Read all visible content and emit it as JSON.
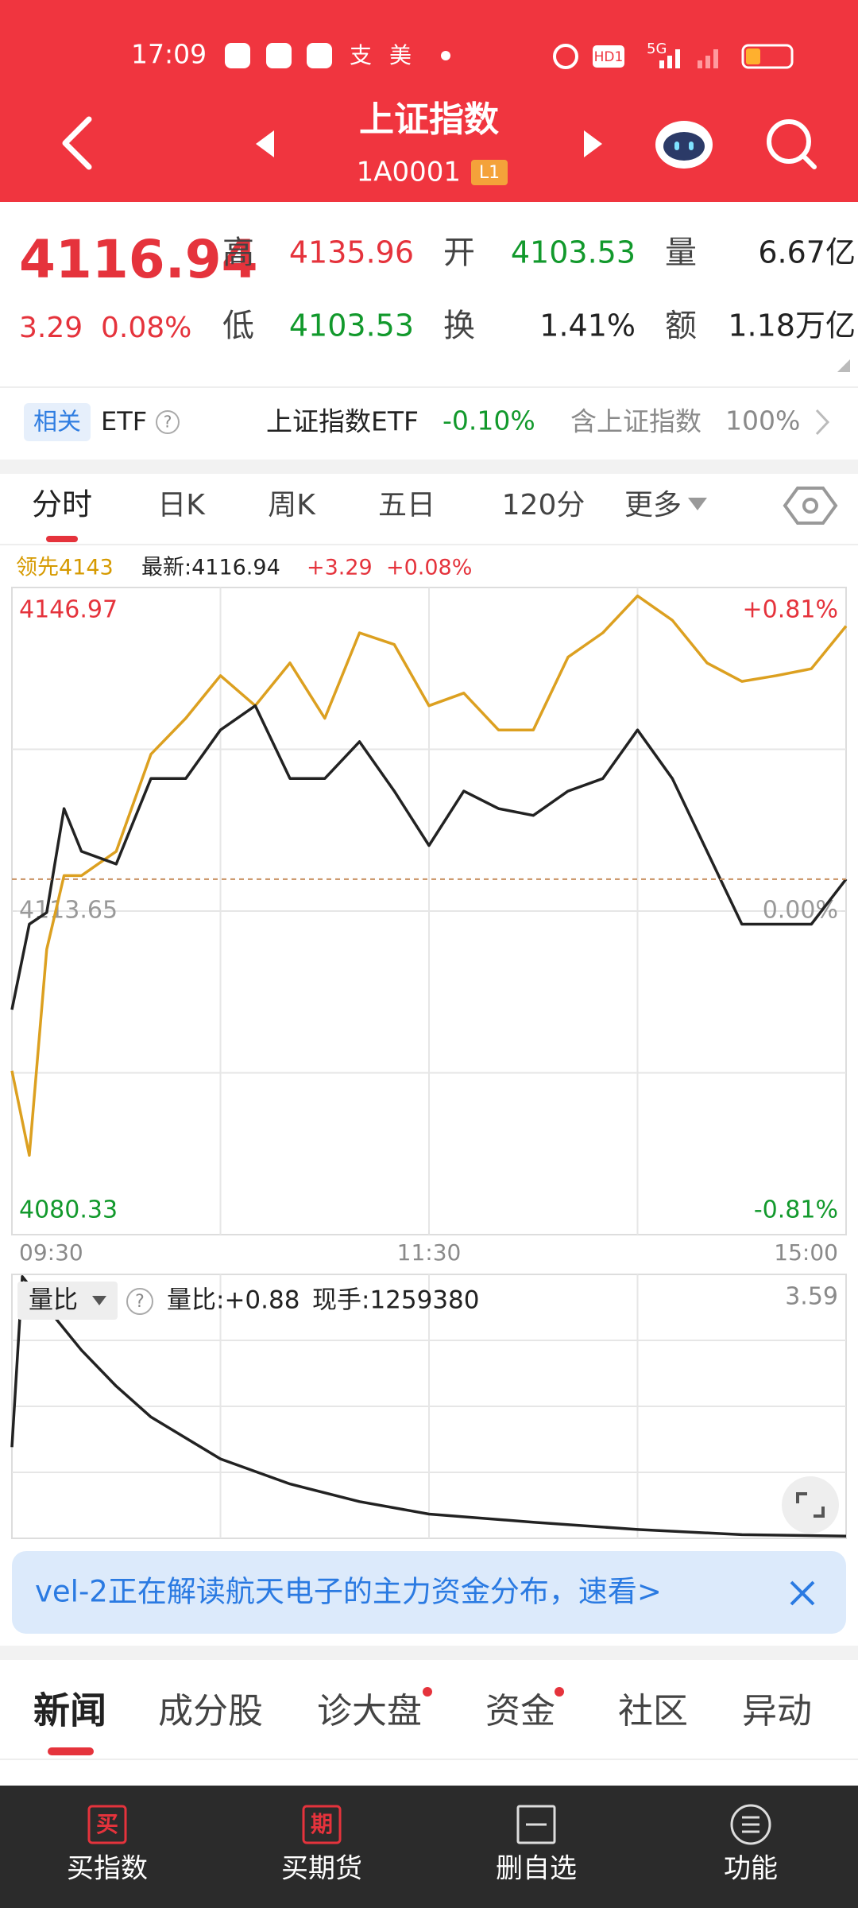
{
  "status": {
    "time": "17:09",
    "icons": [
      "支",
      "美"
    ],
    "hd": "HD1",
    "net": "5G"
  },
  "header": {
    "title": "上证指数",
    "code": "1A0001",
    "level": "L1"
  },
  "quote": {
    "price": "4116.94",
    "change": "3.29",
    "change_pct": "0.08%",
    "fields": [
      {
        "label": "高",
        "value": "4135.96"
      },
      {
        "label": "开",
        "value": "4103.53"
      },
      {
        "label": "量",
        "value": "6.67亿"
      },
      {
        "label": "低",
        "value": "4103.53"
      },
      {
        "label": "换",
        "value": "1.41%"
      },
      {
        "label": "额",
        "value": "1.18万亿"
      }
    ]
  },
  "etf": {
    "tag": "相关",
    "kind": "ETF",
    "help": "?",
    "fund": "上证指数ETF",
    "change": "-0.10%",
    "holding_label": "含上证指数",
    "holding_pct": "100%"
  },
  "tabs": [
    "分时",
    "日K",
    "周K",
    "五日",
    "120分",
    "更多"
  ],
  "chart_data": [
    {
      "type": "line",
      "annotations": [
        "领先4143",
        "最新:4116.94",
        "+3.29",
        "+0.08%"
      ],
      "x": [
        0,
        5,
        10,
        15,
        20,
        30,
        40,
        50,
        60,
        70,
        80,
        90,
        100,
        110,
        120,
        130,
        140,
        150,
        160,
        170,
        180,
        190,
        200,
        210,
        220,
        230,
        240
      ],
      "series": [
        {
          "color": "#dca020",
          "values": [
            4097.2,
            4088.5,
            4109.7,
            4117.3,
            4117.3,
            4119.8,
            4129.8,
            4133.5,
            4137.9,
            4134.8,
            4139.2,
            4133.5,
            4142.3,
            4141.1,
            4134.8,
            4136.1,
            4132.3,
            4132.3,
            4139.8,
            4142.3,
            4146.1,
            4143.6,
            4139.2,
            4137.3,
            4137.9,
            4138.6,
            4143
          ]
        },
        {
          "color": "#222222",
          "values": [
            4103.5,
            4112.3,
            4113.5,
            4124.2,
            4119.8,
            4118.5,
            4127.3,
            4127.3,
            4132.3,
            4134.8,
            4127.3,
            4127.3,
            4131.1,
            4126.0,
            4120.4,
            4126.0,
            4124.2,
            4123.5,
            4126.0,
            4127.3,
            4132.3,
            4127.3,
            4119.8,
            4112.3,
            4112.3,
            4112.3,
            4116.94
          ]
        }
      ],
      "xlim": [
        0,
        240
      ],
      "xticks": [
        {
          "value": 0,
          "label": "09:30"
        },
        {
          "value": 120,
          "label": "11:30"
        },
        {
          "value": 240,
          "label": "15:00"
        }
      ],
      "ylim": [
        4080.33,
        4146.97
      ],
      "yticks": [
        4080.33,
        4113.65,
        4146.97
      ],
      "y2lim": [
        -0.81,
        0.81
      ],
      "y2ticks": [
        {
          "value": 0.81,
          "label": "+0.81%"
        },
        {
          "value": 0,
          "label": "0.00%"
        },
        {
          "value": -0.81,
          "label": "-0.81%"
        }
      ]
    },
    {
      "type": "line",
      "title": "量比",
      "help": "?",
      "annotations": [
        "量比:+0.88",
        "现手:1259380"
      ],
      "x": [
        0,
        3,
        10,
        20,
        30,
        40,
        60,
        80,
        100,
        120,
        150,
        180,
        210,
        240
      ],
      "series": [
        {
          "color": "#222222",
          "values": [
            1.24,
            3.56,
            3.14,
            2.56,
            2.07,
            1.65,
            1.08,
            0.74,
            0.5,
            0.33,
            0.22,
            0.12,
            0.05,
            0.03
          ]
        }
      ],
      "xlim": [
        0,
        240
      ],
      "ylim": [
        0,
        3.59
      ],
      "yticks": [
        3.59
      ]
    }
  ],
  "banner": {
    "text": "vel-2正在解读航天电子的主力资金分布，速看>"
  },
  "news_tabs": [
    "新闻",
    "成分股",
    "诊大盘",
    "资金",
    "社区",
    "异动"
  ],
  "nav": [
    {
      "icon": "买",
      "label": "买指数"
    },
    {
      "icon": "期",
      "label": "买期货"
    },
    {
      "label": "删自选"
    },
    {
      "label": "功能"
    }
  ]
}
